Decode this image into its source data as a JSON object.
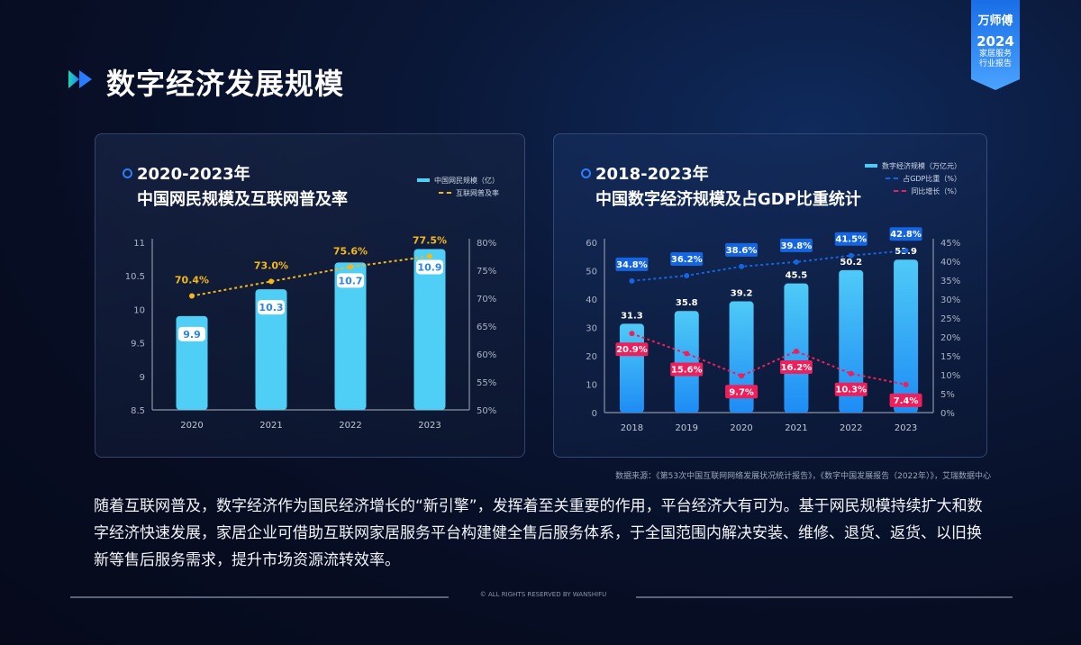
{
  "title": "数字经济发展规模",
  "badge": {
    "brand": "万师傅",
    "year": "2024",
    "line1": "家居服务",
    "line2": "行业报告"
  },
  "colors": {
    "bar1": "#4fcff5",
    "line1": "#f5b81c",
    "bar2_top": "#4fcaf7",
    "bar2_bottom": "#1e8cf5",
    "gdp": "#1565e0",
    "growth": "#ee1f5a"
  },
  "chart_data": [
    {
      "type": "bar+line",
      "title_year": "2020-2023年",
      "title": "中国网民规模及互联网普及率",
      "categories": [
        "2020",
        "2021",
        "2022",
        "2023"
      ],
      "series": [
        {
          "name": "中国网民规模（亿）",
          "type": "bar",
          "axis": "left",
          "values": [
            9.9,
            10.3,
            10.7,
            10.9
          ],
          "labels": [
            "9.9",
            "10.3",
            "10.7",
            "10.9"
          ]
        },
        {
          "name": "互联网普及率",
          "type": "line",
          "axis": "right",
          "values": [
            70.4,
            73.0,
            75.6,
            77.5
          ],
          "labels": [
            "70.4%",
            "73.0%",
            "75.6%",
            "77.5%"
          ]
        }
      ],
      "left_axis": {
        "range": [
          8.5,
          11
        ],
        "ticks": [
          "8.5",
          "9",
          "9.5",
          "10",
          "10.5",
          "11"
        ]
      },
      "right_axis": {
        "range": [
          50,
          80
        ],
        "ticks": [
          "50%",
          "55%",
          "60%",
          "65%",
          "70%",
          "75%",
          "80%"
        ]
      },
      "legend": "top-right",
      "grid": false
    },
    {
      "type": "bar+line",
      "title_year": "2018-2023年",
      "title": "中国数字经济规模及占GDP比重统计",
      "categories": [
        "2018",
        "2019",
        "2020",
        "2021",
        "2022",
        "2023"
      ],
      "series": [
        {
          "name": "数字经济规模（万亿元）",
          "type": "bar",
          "axis": "left",
          "values": [
            31.3,
            35.8,
            39.2,
            45.5,
            50.2,
            53.9
          ],
          "labels": [
            "31.3",
            "35.8",
            "39.2",
            "45.5",
            "50.2",
            "53.9"
          ]
        },
        {
          "name": "占GDP比重（%）",
          "type": "line",
          "axis": "right",
          "values": [
            34.8,
            36.2,
            38.6,
            39.8,
            41.5,
            42.8
          ],
          "labels": [
            "34.8%",
            "36.2%",
            "38.6%",
            "39.8%",
            "41.5%",
            "42.8%"
          ]
        },
        {
          "name": "同比增长（%）",
          "type": "line",
          "axis": "right",
          "values": [
            20.9,
            15.6,
            9.7,
            16.2,
            10.3,
            7.4
          ],
          "labels": [
            "20.9%",
            "15.6%",
            "9.7%",
            "16.2%",
            "10.3%",
            "7.4%"
          ]
        }
      ],
      "left_axis": {
        "range": [
          0,
          60
        ],
        "ticks": [
          "0",
          "10",
          "20",
          "30",
          "40",
          "50",
          "60"
        ]
      },
      "right_axis": {
        "range": [
          0,
          45
        ],
        "ticks": [
          "0%",
          "5%",
          "10%",
          "15%",
          "20%",
          "25%",
          "30%",
          "35%",
          "40%",
          "45%"
        ]
      },
      "legend": "top-right",
      "grid": false
    }
  ],
  "source": "数据来源：《第53次中国互联网网络发展状况统计报告》，《数字中国发展报告（2022年）》，艾瑞数据中心",
  "paragraph": "随着互联网普及，数字经济作为国民经济增长的“新引擎”，发挥着至关重要的作用，平台经济大有可为。基于网民规模持续扩大和数字经济快速发展，家居企业可借助互联网家居服务平台构建健全售后服务体系，于全国范围内解决安装、维修、退货、返货、以旧换新等售后服务需求，提升市场资源流转效率。",
  "footer": "© ALL RIGHTS RESERVED BY WANSHIFU"
}
